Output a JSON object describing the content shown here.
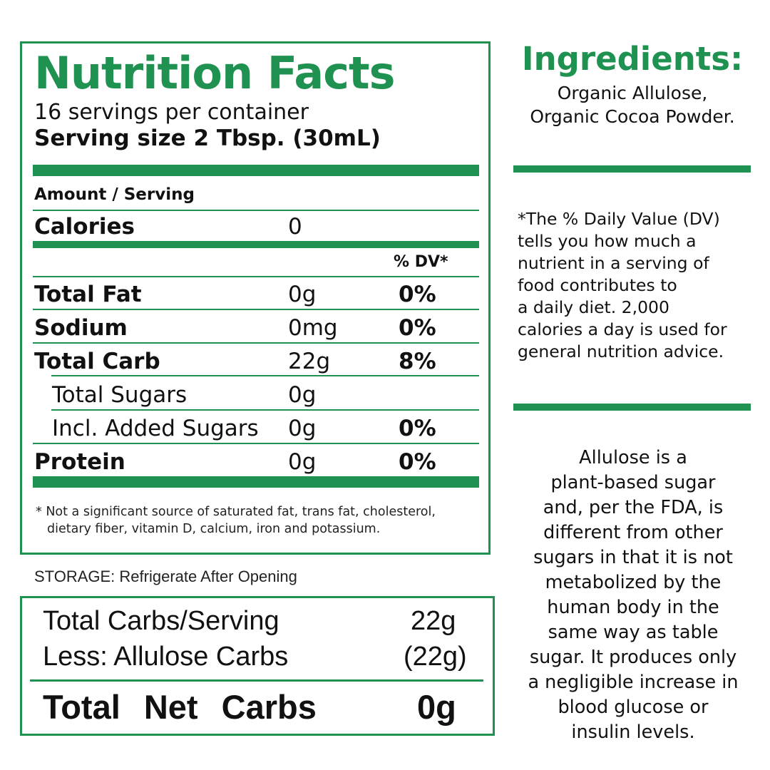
{
  "nutrition": {
    "title": "Nutrition Facts",
    "servings_per_container": "16 servings per container",
    "serving_size": "Serving size 2 Tbsp. (30mL)",
    "amount_per_serving": "Amount / Serving",
    "calories_label": "Calories",
    "calories_value": "0",
    "dv_header": "% DV*",
    "rows": [
      {
        "label": "Total Fat",
        "amount": "0g",
        "dv": "0%"
      },
      {
        "label": "Sodium",
        "amount": "0mg",
        "dv": "0%"
      },
      {
        "label": "Total Carb",
        "amount": "22g",
        "dv": "8%"
      },
      {
        "label": "Total Sugars",
        "amount": "0g",
        "dv": ""
      },
      {
        "label": "Incl. Added Sugars",
        "amount": "0g",
        "dv": "0%"
      },
      {
        "label": "Protein",
        "amount": "0g",
        "dv": "0%"
      }
    ],
    "footnote_line1": "* Not a significant source of saturated fat, trans fat, cholesterol,",
    "footnote_line2": "dietary fiber, vitamin D, calcium, iron and potassium.",
    "accent_color": "#1f9150"
  },
  "storage": "STORAGE: Refrigerate After Opening",
  "net_carbs": {
    "total_label": "Total Carbs/Serving",
    "total_value": "22g",
    "less_label": "Less: Allulose Carbs",
    "less_value": "(22g)",
    "net_label": "Total Net Carbs",
    "net_value": "0g"
  },
  "ingredients": {
    "title": "Ingredients:",
    "line1": "Organic Allulose,",
    "line2": "Organic Cocoa Powder."
  },
  "dv_note": {
    "lines": [
      "*The % Daily Value (DV)",
      "tells you how much a",
      "nutrient in a serving of",
      "food contributes to",
      "a daily diet. 2,000",
      "calories a day is used for",
      "general nutrition advice."
    ]
  },
  "allulose_note": {
    "lines": [
      "Allulose is a",
      "plant-based sugar",
      "and, per the FDA, is",
      "different from other",
      "sugars in that it is not",
      "metabolized by the",
      "human body in the",
      "same way as table",
      "sugar. It produces only",
      "a negligible increase in",
      "blood glucose or",
      "insulin levels."
    ]
  }
}
